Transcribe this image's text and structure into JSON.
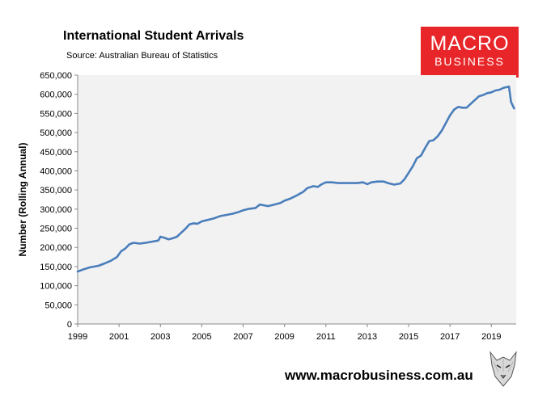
{
  "chart_data": {
    "type": "line",
    "title": "International Student Arrivals",
    "subtitle": "Source: Australian Bureau of Statistics",
    "ylabel": "Number (Rolling Annual)",
    "xlabel": "",
    "xlim": [
      1999,
      2020.2
    ],
    "ylim": [
      0,
      650000
    ],
    "x_ticks": [
      "1999",
      "2001",
      "2003",
      "2005",
      "2007",
      "2009",
      "2011",
      "2013",
      "2015",
      "2017",
      "2019"
    ],
    "y_ticks": [
      "0",
      "50,000",
      "100,000",
      "150,000",
      "200,000",
      "250,000",
      "300,000",
      "350,000",
      "400,000",
      "450,000",
      "500,000",
      "550,000",
      "600,000",
      "650,000"
    ],
    "grid": false,
    "series": [
      {
        "color": "#4a7ebb",
        "points": [
          [
            1999.0,
            137000
          ],
          [
            1999.3,
            143000
          ],
          [
            1999.6,
            148000
          ],
          [
            2000.0,
            152000
          ],
          [
            2000.3,
            158000
          ],
          [
            2000.6,
            165000
          ],
          [
            2000.9,
            175000
          ],
          [
            2001.1,
            190000
          ],
          [
            2001.3,
            197000
          ],
          [
            2001.5,
            208000
          ],
          [
            2001.7,
            212000
          ],
          [
            2002.0,
            210000
          ],
          [
            2002.3,
            212000
          ],
          [
            2002.6,
            215000
          ],
          [
            2002.9,
            218000
          ],
          [
            2003.0,
            228000
          ],
          [
            2003.2,
            225000
          ],
          [
            2003.4,
            221000
          ],
          [
            2003.6,
            224000
          ],
          [
            2003.8,
            228000
          ],
          [
            2004.0,
            238000
          ],
          [
            2004.2,
            248000
          ],
          [
            2004.4,
            260000
          ],
          [
            2004.6,
            263000
          ],
          [
            2004.8,
            262000
          ],
          [
            2005.0,
            268000
          ],
          [
            2005.3,
            272000
          ],
          [
            2005.6,
            276000
          ],
          [
            2005.9,
            282000
          ],
          [
            2006.2,
            285000
          ],
          [
            2006.5,
            288000
          ],
          [
            2006.8,
            293000
          ],
          [
            2007.0,
            297000
          ],
          [
            2007.3,
            301000
          ],
          [
            2007.6,
            303000
          ],
          [
            2007.8,
            312000
          ],
          [
            2008.0,
            310000
          ],
          [
            2008.2,
            308000
          ],
          [
            2008.5,
            312000
          ],
          [
            2008.8,
            316000
          ],
          [
            2009.0,
            322000
          ],
          [
            2009.3,
            328000
          ],
          [
            2009.6,
            336000
          ],
          [
            2009.9,
            345000
          ],
          [
            2010.1,
            355000
          ],
          [
            2010.4,
            360000
          ],
          [
            2010.6,
            358000
          ],
          [
            2010.8,
            365000
          ],
          [
            2011.0,
            370000
          ],
          [
            2011.3,
            370000
          ],
          [
            2011.6,
            368000
          ],
          [
            2011.9,
            368000
          ],
          [
            2012.2,
            368000
          ],
          [
            2012.5,
            368000
          ],
          [
            2012.8,
            370000
          ],
          [
            2013.0,
            365000
          ],
          [
            2013.2,
            370000
          ],
          [
            2013.5,
            372000
          ],
          [
            2013.8,
            372000
          ],
          [
            2014.0,
            368000
          ],
          [
            2014.3,
            364000
          ],
          [
            2014.6,
            367000
          ],
          [
            2014.8,
            378000
          ],
          [
            2015.0,
            395000
          ],
          [
            2015.2,
            412000
          ],
          [
            2015.4,
            433000
          ],
          [
            2015.6,
            440000
          ],
          [
            2015.8,
            460000
          ],
          [
            2016.0,
            478000
          ],
          [
            2016.2,
            480000
          ],
          [
            2016.4,
            490000
          ],
          [
            2016.6,
            505000
          ],
          [
            2016.8,
            525000
          ],
          [
            2017.0,
            545000
          ],
          [
            2017.2,
            560000
          ],
          [
            2017.4,
            567000
          ],
          [
            2017.6,
            565000
          ],
          [
            2017.8,
            565000
          ],
          [
            2018.0,
            575000
          ],
          [
            2018.2,
            585000
          ],
          [
            2018.4,
            595000
          ],
          [
            2018.6,
            598000
          ],
          [
            2018.8,
            603000
          ],
          [
            2019.0,
            605000
          ],
          [
            2019.2,
            610000
          ],
          [
            2019.4,
            612000
          ],
          [
            2019.6,
            617000
          ],
          [
            2019.85,
            620000
          ],
          [
            2019.95,
            580000
          ],
          [
            2020.1,
            563000
          ]
        ]
      }
    ]
  },
  "logo": {
    "line1": "MACRO",
    "line2": "BUSINESS",
    "color": "#e8262a"
  },
  "website": "www.macrobusiness.com.au",
  "wolf_icon": "wolf-logo-icon"
}
